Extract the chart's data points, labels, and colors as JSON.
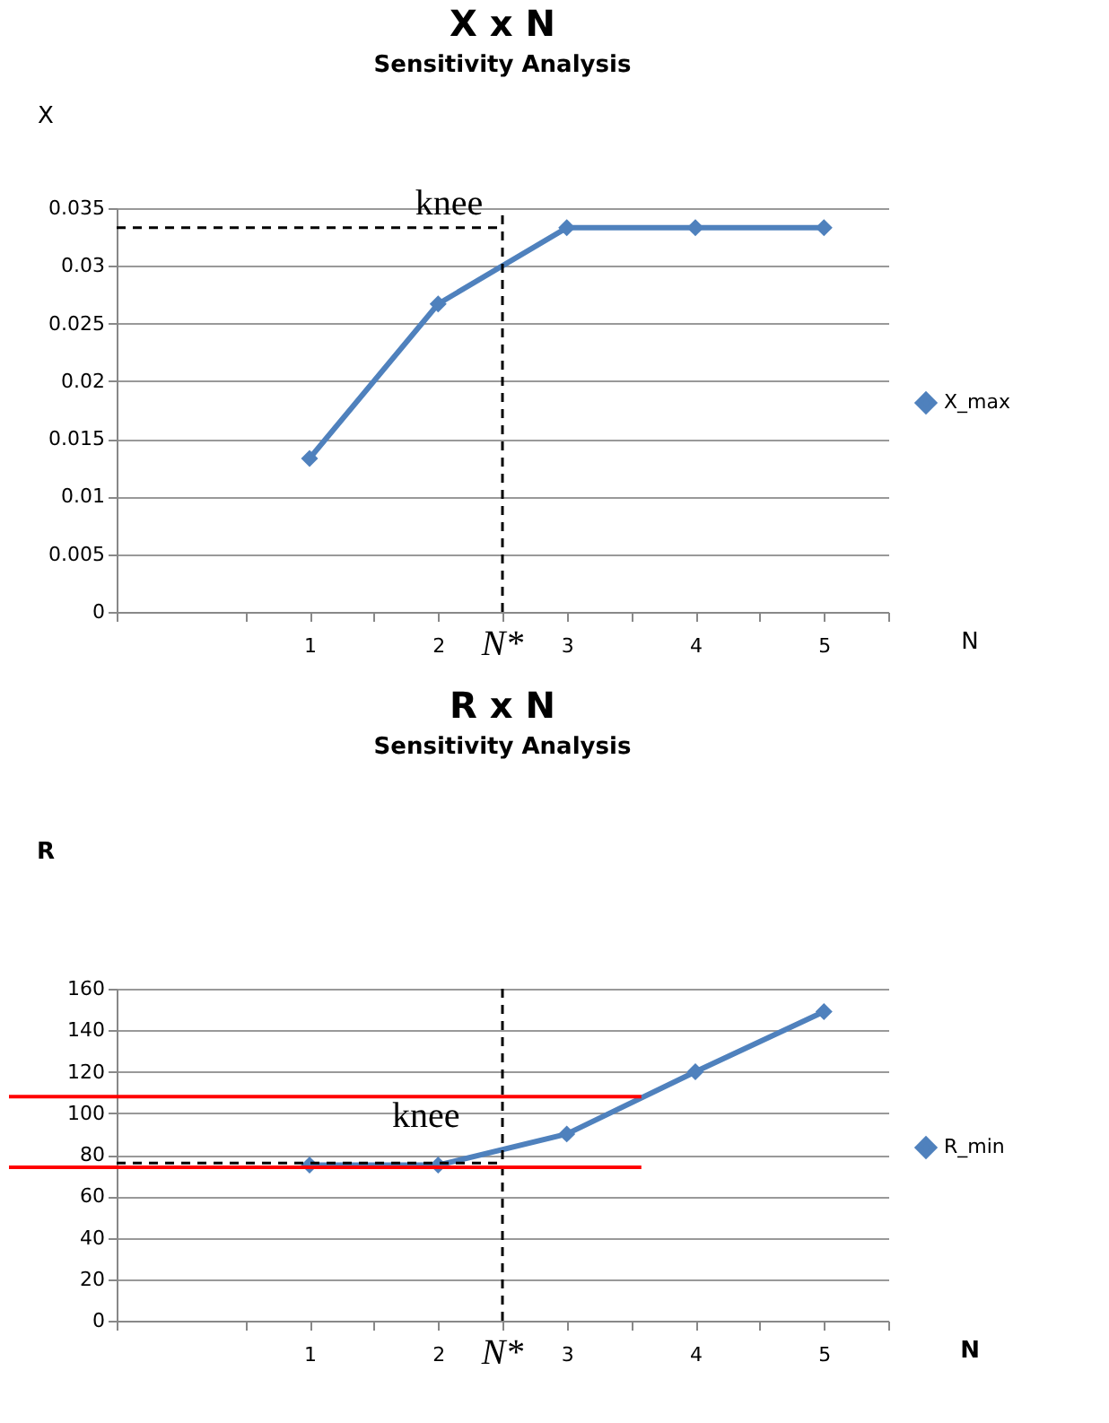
{
  "chart_data": [
    {
      "type": "line",
      "title": "X x N",
      "subtitle": "Sensitivity Analysis",
      "xlabel": "N",
      "ylabel": "X",
      "x": [
        1,
        2,
        3,
        4,
        5
      ],
      "xlim": [
        -0.5,
        5.5
      ],
      "xticks": [
        {
          "value": -0.5,
          "label": null
        },
        {
          "value": 0.5,
          "label": null
        },
        1,
        {
          "value": 1.5,
          "label": null
        },
        2,
        {
          "value": 2.5,
          "label": null
        },
        3,
        {
          "value": 3.5,
          "label": null
        },
        4,
        {
          "value": 4.5,
          "label": null
        },
        5,
        {
          "value": 5.5,
          "label": null
        }
      ],
      "ylim": [
        0,
        0.035
      ],
      "yticks": [
        0,
        0.005,
        0.01,
        0.015,
        0.02,
        0.025,
        0.03,
        0.035
      ],
      "grid": "y",
      "legend": "right",
      "marker": "diamond",
      "line_style": "solid",
      "series": [
        {
          "name": "X_max",
          "color": "#4f81bd",
          "values": [
            0.0133,
            0.0267,
            0.0333,
            0.0333,
            0.0333
          ]
        }
      ],
      "ref_lines": [
        {
          "axis": "x",
          "value": 2.5,
          "label": "N*",
          "color": "#000000",
          "line_style": "dashed"
        },
        {
          "axis": "y",
          "value": 0.0333,
          "color": "#000000",
          "line_style": "dashed"
        }
      ],
      "annotations": [
        {
          "text": "knee",
          "x": 2.46,
          "y": 0.0329
        }
      ]
    },
    {
      "type": "line",
      "title": "R  x N",
      "subtitle": "Sensitivity Analysis",
      "xlabel": "N",
      "ylabel": "R",
      "x": [
        1,
        2,
        3,
        4,
        5
      ],
      "xlim": [
        -0.5,
        5.5
      ],
      "xticks": [
        {
          "value": -0.5,
          "label": null
        },
        {
          "value": 0.5,
          "label": null
        },
        1,
        {
          "value": 1.5,
          "label": null
        },
        2,
        {
          "value": 2.5,
          "label": null
        },
        3,
        {
          "value": 3.5,
          "label": null
        },
        4,
        {
          "value": 4.5,
          "label": null
        },
        5,
        {
          "value": 5.5,
          "label": null
        }
      ],
      "ylim": [
        0,
        160
      ],
      "yticks": [
        0,
        20,
        40,
        60,
        80,
        100,
        120,
        140,
        160
      ],
      "grid": "y",
      "legend": "right",
      "marker": "diamond",
      "line_style": "solid",
      "series": [
        {
          "name": "R_min",
          "color": "#4f81bd",
          "values": [
            75,
            75,
            90,
            120,
            149
          ]
        }
      ],
      "ref_lines": [
        {
          "axis": "x",
          "value": 2.5,
          "label": "N*",
          "color": "#000000",
          "line_style": "dashed"
        },
        {
          "axis": "y",
          "value": 76,
          "color": "#000000",
          "line_style": "dashed"
        },
        {
          "axis": "y",
          "value": 108,
          "color": "#ff0000",
          "line_style": "solid"
        },
        {
          "axis": "y",
          "value": 74,
          "color": "#ff0000",
          "line_style": "solid"
        }
      ],
      "annotations": [
        {
          "text": "knee",
          "x": 2.28,
          "y": 84.6
        }
      ]
    }
  ]
}
